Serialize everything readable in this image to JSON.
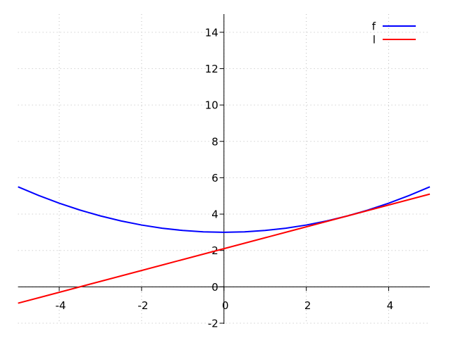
{
  "chart_data": {
    "type": "line",
    "x": [
      -5,
      -4.5,
      -4,
      -3.5,
      -3,
      -2.5,
      -2,
      -1.5,
      -1,
      -0.5,
      0,
      0.5,
      1,
      1.5,
      2,
      2.5,
      3,
      3.5,
      4,
      4.5,
      5
    ],
    "series": [
      {
        "name": "f",
        "color": "#0000ff",
        "values": [
          5.5,
          5.025,
          4.6,
          4.225,
          3.9,
          3.625,
          3.4,
          3.225,
          3.1,
          3.025,
          3,
          3.025,
          3.1,
          3.225,
          3.4,
          3.625,
          3.9,
          4.225,
          4.6,
          5.025,
          5.5
        ]
      },
      {
        "name": "l",
        "color": "#ff0000",
        "values": [
          -0.9,
          -0.6,
          -0.3,
          0,
          0.3,
          0.6,
          0.9,
          1.2,
          1.5,
          1.8,
          2.1,
          2.4,
          2.7,
          3,
          3.3,
          3.6,
          3.9,
          4.2,
          4.5,
          4.8,
          5.1
        ]
      }
    ],
    "xlim": [
      -5,
      5
    ],
    "ylim": [
      -2,
      15
    ],
    "xticks": [
      -4,
      -2,
      0,
      2,
      4
    ],
    "yticks": [
      -2,
      0,
      2,
      4,
      6,
      8,
      10,
      12,
      14
    ],
    "grid": true,
    "legend": "top-right"
  }
}
